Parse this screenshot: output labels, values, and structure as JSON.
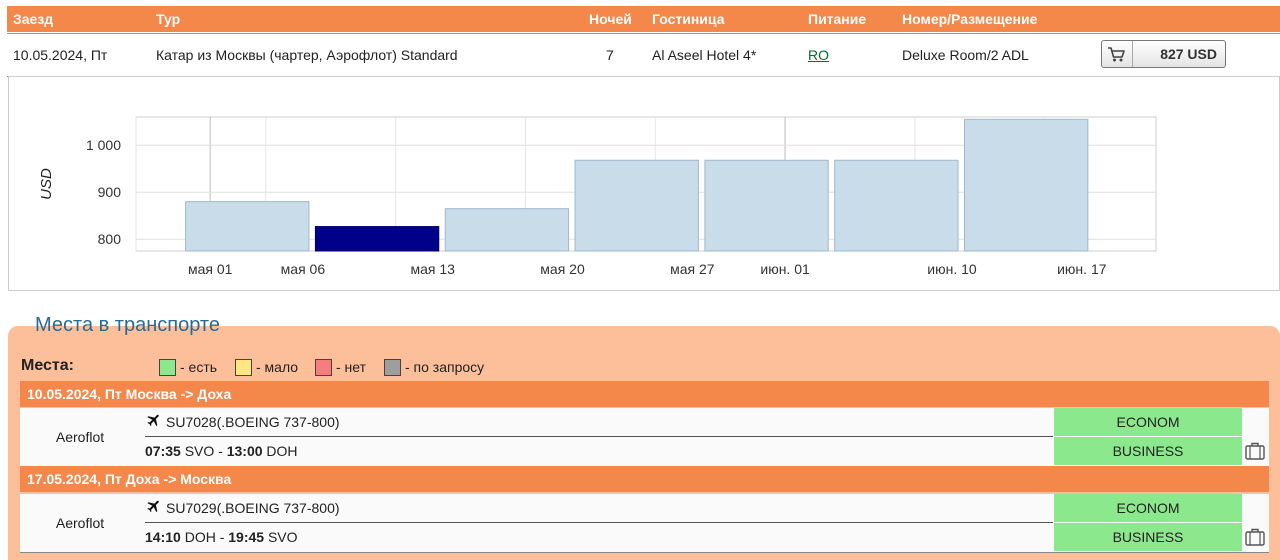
{
  "tour_table": {
    "headers": {
      "checkin": "Заезд",
      "tour": "Тур",
      "nights": "Ночей",
      "hotel": "Гостиница",
      "meal": "Питание",
      "room": "Номер/Размещение"
    },
    "row": {
      "checkin": "10.05.2024, Пт",
      "tour": "Катар из Москвы (чартер, Аэрофлот) Standard",
      "nights": "7",
      "hotel": "Al Aseel Hotel 4*",
      "meal": "RO",
      "room": "Deluxe Room/2 ADL",
      "price": "827 USD"
    }
  },
  "chart_data": {
    "type": "bar",
    "ylabel": "USD",
    "ylim": [
      775,
      1060
    ],
    "yticks": [
      800,
      900,
      1000
    ],
    "ytick_labels": [
      "800",
      "900",
      "1 000"
    ],
    "x_tick_labels": [
      "мая 01",
      "мая 06",
      "мая 13",
      "мая 20",
      "мая 27",
      "июн. 01",
      "июн. 10",
      "июн. 17"
    ],
    "bars": [
      {
        "date": "2024-05-03",
        "value": 880,
        "selected": false
      },
      {
        "date": "2024-05-10",
        "value": 827,
        "selected": true
      },
      {
        "date": "2024-05-17",
        "value": 865,
        "selected": false
      },
      {
        "date": "2024-05-24",
        "value": 968,
        "selected": false
      },
      {
        "date": "2024-05-31",
        "value": 968,
        "selected": false
      },
      {
        "date": "2024-06-07",
        "value": 968,
        "selected": false
      },
      {
        "date": "2024-06-14",
        "value": 1055,
        "selected": false
      }
    ],
    "colors": {
      "bar": "#c9dce9",
      "selected": "#00008b"
    }
  },
  "transport": {
    "title": "Места в транспорте",
    "places_label": "Места:",
    "legend": [
      {
        "color": "#8ce88c",
        "label": "- есть"
      },
      {
        "color": "#fce680",
        "label": "- мало"
      },
      {
        "color": "#f77d7d",
        "label": "- нет"
      },
      {
        "color": "#9e9e9e",
        "label": "- по запросу"
      }
    ],
    "routes": [
      {
        "header": "10.05.2024, Пт Москва -> Доха",
        "airline": "Aeroflot",
        "flight": "SU7028(.BOEING 737-800)",
        "dep_time": "07:35",
        "dep_airport": " SVO - ",
        "arr_time": "13:00",
        "arr_airport": " DOH",
        "classes": [
          "ECONOM",
          "BUSINESS"
        ]
      },
      {
        "header": "17.05.2024, Пт Доха -> Москва",
        "airline": "Aeroflot",
        "flight": "SU7029(.BOEING 737-800)",
        "dep_time": "14:10",
        "dep_airport": " DOH - ",
        "arr_time": "19:45",
        "arr_airport": " SVO",
        "classes": [
          "ECONOM",
          "BUSINESS"
        ]
      }
    ]
  }
}
